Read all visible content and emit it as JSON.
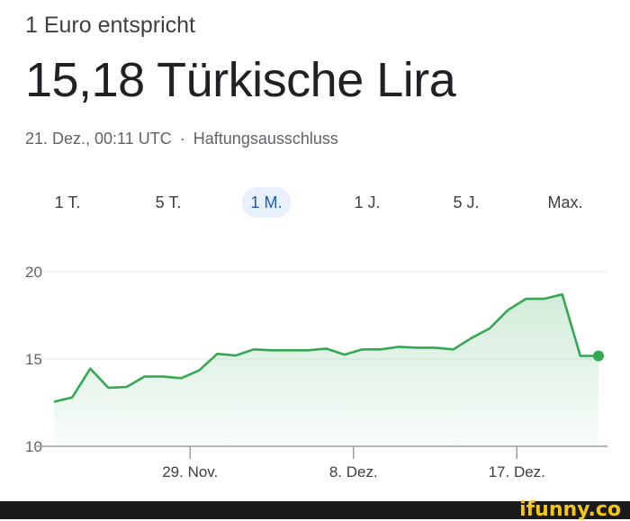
{
  "header": {
    "label": "1 Euro entspricht",
    "value": "15,18 Türkische Lira",
    "timestamp": "21. Dez., 00:11 UTC",
    "separator": "·",
    "disclaimer": "Haftungsausschluss"
  },
  "ranges": [
    {
      "label": "1 T.",
      "active": false
    },
    {
      "label": "5 T.",
      "active": false
    },
    {
      "label": "1 M.",
      "active": true
    },
    {
      "label": "1 J.",
      "active": false
    },
    {
      "label": "5 J.",
      "active": false
    },
    {
      "label": "Max.",
      "active": false
    }
  ],
  "colors": {
    "line": "#34a853",
    "fill": "#e6f4ea",
    "grid": "#e8eaed",
    "axis": "#5f6368",
    "active_range": "#1a5bbf"
  },
  "chart_data": {
    "type": "area",
    "title": "",
    "xlabel": "",
    "ylabel": "",
    "ylim": [
      10,
      20
    ],
    "yticks": [
      "20",
      "15",
      "10"
    ],
    "xticks": [
      {
        "label": "29. Nov.",
        "index": 7.5
      },
      {
        "label": "8. Dez.",
        "index": 16.5
      },
      {
        "label": "17. Dez.",
        "index": 25.5
      }
    ],
    "grid": true,
    "legend": "none",
    "series": [
      {
        "values": [
          12.55,
          12.8,
          14.45,
          13.35,
          13.4,
          14.0,
          14.0,
          13.9,
          14.35,
          15.3,
          15.2,
          15.55,
          15.5,
          15.5,
          15.5,
          15.6,
          15.25,
          15.55,
          15.55,
          15.7,
          15.65,
          15.65,
          15.55,
          16.2,
          16.75,
          17.8,
          18.45,
          18.45,
          18.7,
          15.18,
          15.18
        ]
      }
    ]
  },
  "footer": {
    "brand": "ifunny.co"
  }
}
